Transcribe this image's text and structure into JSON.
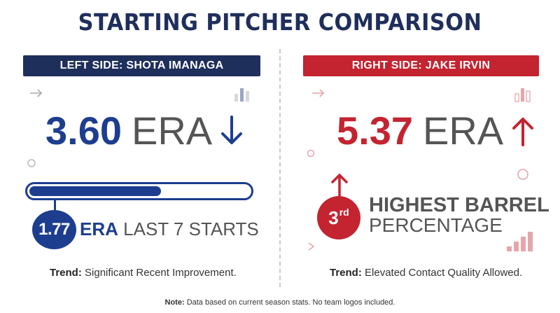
{
  "title": "STARTING PITCHER COMPARISON",
  "colors": {
    "navy": "#1f2f5c",
    "blue": "#1d3e8f",
    "red": "#c42330",
    "gray_text": "#555555"
  },
  "left": {
    "banner": "LEFT SIDE: SHOTA IMANAGA",
    "era_value": "3.60",
    "era_unit": "ERA",
    "era_trend_icon": "arrow-down-icon",
    "recent_bar_fraction": 0.6,
    "recent_era_value": "1.77",
    "recent_era_label_bold": "ERA",
    "recent_era_label_rest": "LAST 7 STARTS",
    "trend_label": "Trend:",
    "trend_text": "Significant Recent Improvement."
  },
  "right": {
    "banner": "RIGHT SIDE: JAKE IRVIN",
    "era_value": "5.37",
    "era_unit": "ERA",
    "era_trend_icon": "arrow-up-icon",
    "rank_number": "3",
    "rank_suffix": "rd",
    "rank_line1": "HIGHEST BARREL",
    "rank_line2": "PERCENTAGE",
    "trend_label": "Trend:",
    "trend_text": "Elevated Contact Quality Allowed."
  },
  "note_label": "Note:",
  "note_text": "Data based on current season stats. No team logos included."
}
